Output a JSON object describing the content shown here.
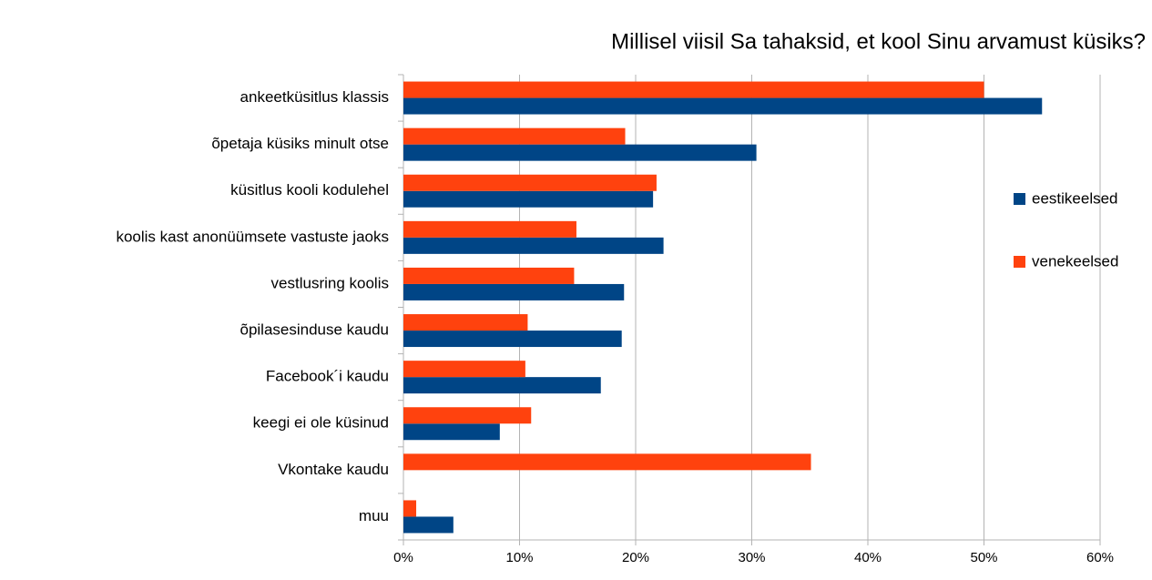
{
  "chart_data": {
    "type": "hbar",
    "title": "Millisel viisil Sa tahaksid, et kool Sinu arvamust küsiks?",
    "categories": [
      "ankeetküsitlus klassis",
      "õpetaja küsiks minult otse",
      "küsitlus kooli kodulehel",
      "koolis kast anonüümsete vastuste jaoks",
      "vestlusring koolis",
      "õpilasesinduse kaudu",
      "Facebook´i kaudu",
      "keegi ei ole küsinud",
      "Vkontake kaudu",
      "muu"
    ],
    "series": [
      {
        "name": "eestikeelsed",
        "color": "#004586",
        "values": [
          55.0,
          30.4,
          21.5,
          22.4,
          19.0,
          18.8,
          17.0,
          8.3,
          0,
          4.3
        ]
      },
      {
        "name": "venekeelsed",
        "color": "#ff420e",
        "values": [
          50.0,
          19.1,
          21.8,
          14.9,
          14.7,
          10.7,
          10.5,
          11.0,
          35.1,
          1.1
        ]
      }
    ],
    "xlim": [
      0,
      60
    ],
    "xticks": [
      {
        "value": 0,
        "label": "0%"
      },
      {
        "value": 10,
        "label": "10%"
      },
      {
        "value": 20,
        "label": "20%"
      },
      {
        "value": 30,
        "label": "30%"
      },
      {
        "value": 40,
        "label": "40%"
      },
      {
        "value": 50,
        "label": "50%"
      },
      {
        "value": 60,
        "label": "60%"
      }
    ],
    "grid": true,
    "legend": "right"
  }
}
